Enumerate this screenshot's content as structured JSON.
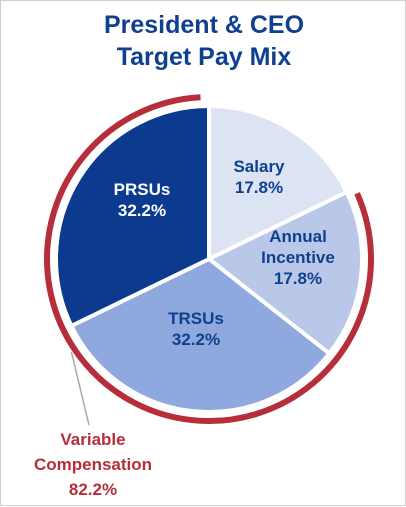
{
  "chart_data": {
    "type": "pie",
    "title_lines": [
      "President & CEO",
      "Target Pay Mix"
    ],
    "slices": [
      {
        "label": "Salary",
        "value": 17.8,
        "value_label": "17.8%",
        "color": "#dce3f3",
        "text_color": "#0f3f8f"
      },
      {
        "label": "Annual Incentive",
        "label_lines": [
          "Annual",
          "Incentive"
        ],
        "value": 17.8,
        "value_label": "17.8%",
        "color": "#b9c8e8",
        "text_color": "#0f3f8f"
      },
      {
        "label": "TRSUs",
        "value": 32.2,
        "value_label": "32.2%",
        "color": "#8fa8dd",
        "text_color": "#0f3f8f"
      },
      {
        "label": "PRSUs",
        "value": 32.2,
        "value_label": "32.2%",
        "color": "#0c3a8f",
        "text_color": "#ffffff"
      }
    ],
    "annotation": {
      "label_lines": [
        "Variable",
        "Compensation",
        "82.2%"
      ],
      "color": "#b62e3a",
      "spans": [
        "Annual Incentive",
        "TRSUs",
        "PRSUs"
      ]
    }
  }
}
